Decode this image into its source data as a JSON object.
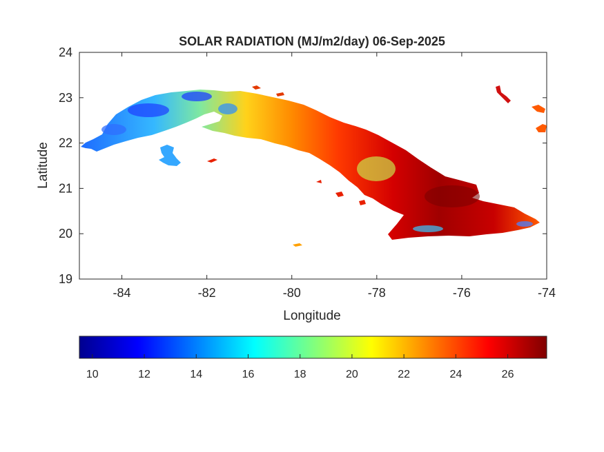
{
  "map": {
    "title": "SOLAR RADIATION (MJ/m2/day) 06-Sep-2025",
    "xlabel": "Longitude",
    "ylabel": "Latitude",
    "x_ticks": [
      "-84",
      "-82",
      "-80",
      "-78",
      "-76",
      "-74"
    ],
    "y_ticks": [
      "24",
      "23",
      "22",
      "21",
      "20",
      "19"
    ],
    "xlim": [
      -85,
      -74
    ],
    "ylim": [
      19,
      24
    ],
    "colormap": "jet",
    "colorbar": {
      "range": [
        9.5,
        27.5
      ],
      "ticks": [
        "10",
        "12",
        "14",
        "16",
        "18",
        "20",
        "22",
        "24",
        "26"
      ]
    },
    "colors": {
      "low": "#00008f",
      "mid": "#ffff00",
      "high": "#800000"
    }
  }
}
